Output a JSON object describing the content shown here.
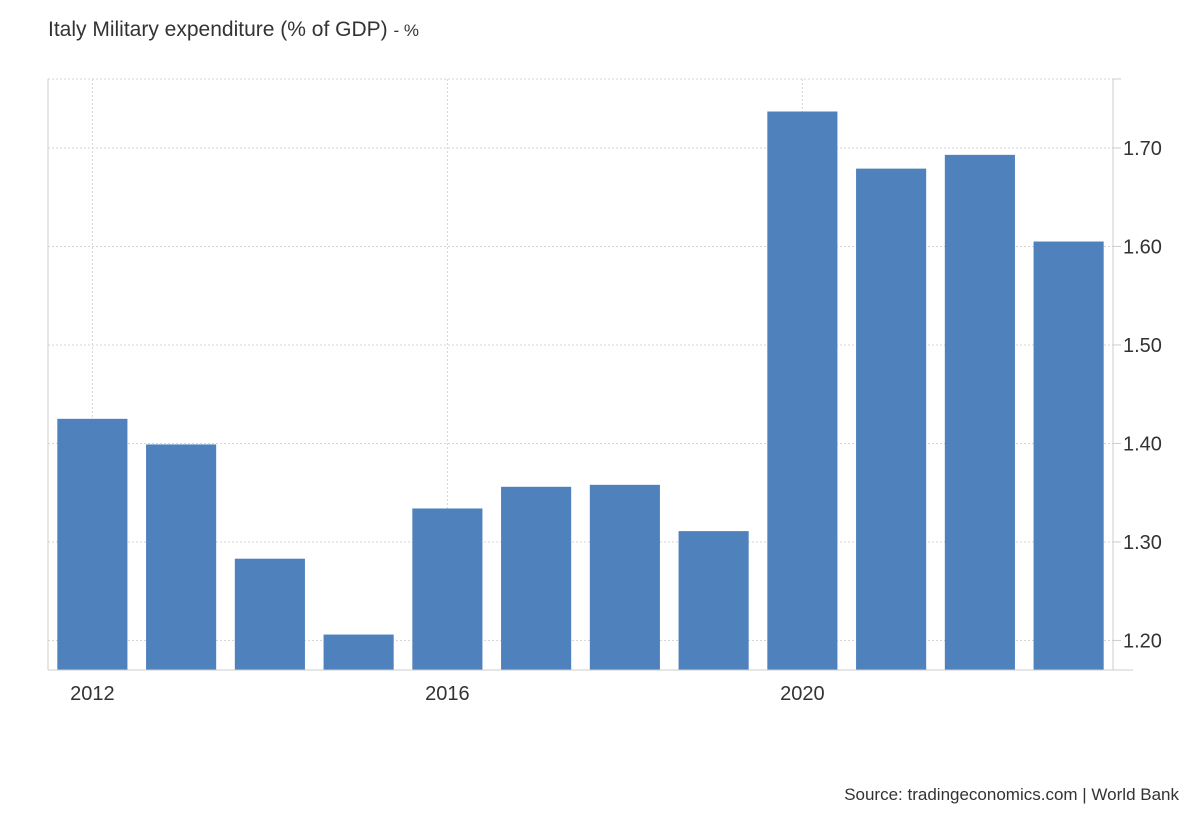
{
  "title": {
    "main": "Italy Military expenditure (% of GDP)",
    "unit": "- %"
  },
  "source": "Source: tradingeconomics.com | World Bank",
  "colors": {
    "bar": "#4f81bd",
    "grid": "#d6d6d6",
    "axis": "#cccccc",
    "text": "#333333"
  },
  "chart_data": {
    "type": "bar",
    "title": "Italy Military expenditure (% of GDP)",
    "xlabel": "",
    "ylabel": "",
    "categories": [
      "2012",
      "2013",
      "2014",
      "2015",
      "2016",
      "2017",
      "2018",
      "2019",
      "2020",
      "2021",
      "2022",
      "2023"
    ],
    "values": [
      1.425,
      1.399,
      1.283,
      1.206,
      1.334,
      1.356,
      1.358,
      1.311,
      1.737,
      1.679,
      1.693,
      1.605
    ],
    "ylim": [
      1.17,
      1.77
    ],
    "y_ticks": [
      "1.20",
      "1.30",
      "1.40",
      "1.50",
      "1.60",
      "1.70"
    ],
    "x_tick_labels": [
      "2012",
      "2016",
      "2020"
    ],
    "x_tick_categories": [
      "2012",
      "2016",
      "2020"
    ],
    "y_axis_side": "right",
    "grid": true,
    "legend": "none"
  }
}
